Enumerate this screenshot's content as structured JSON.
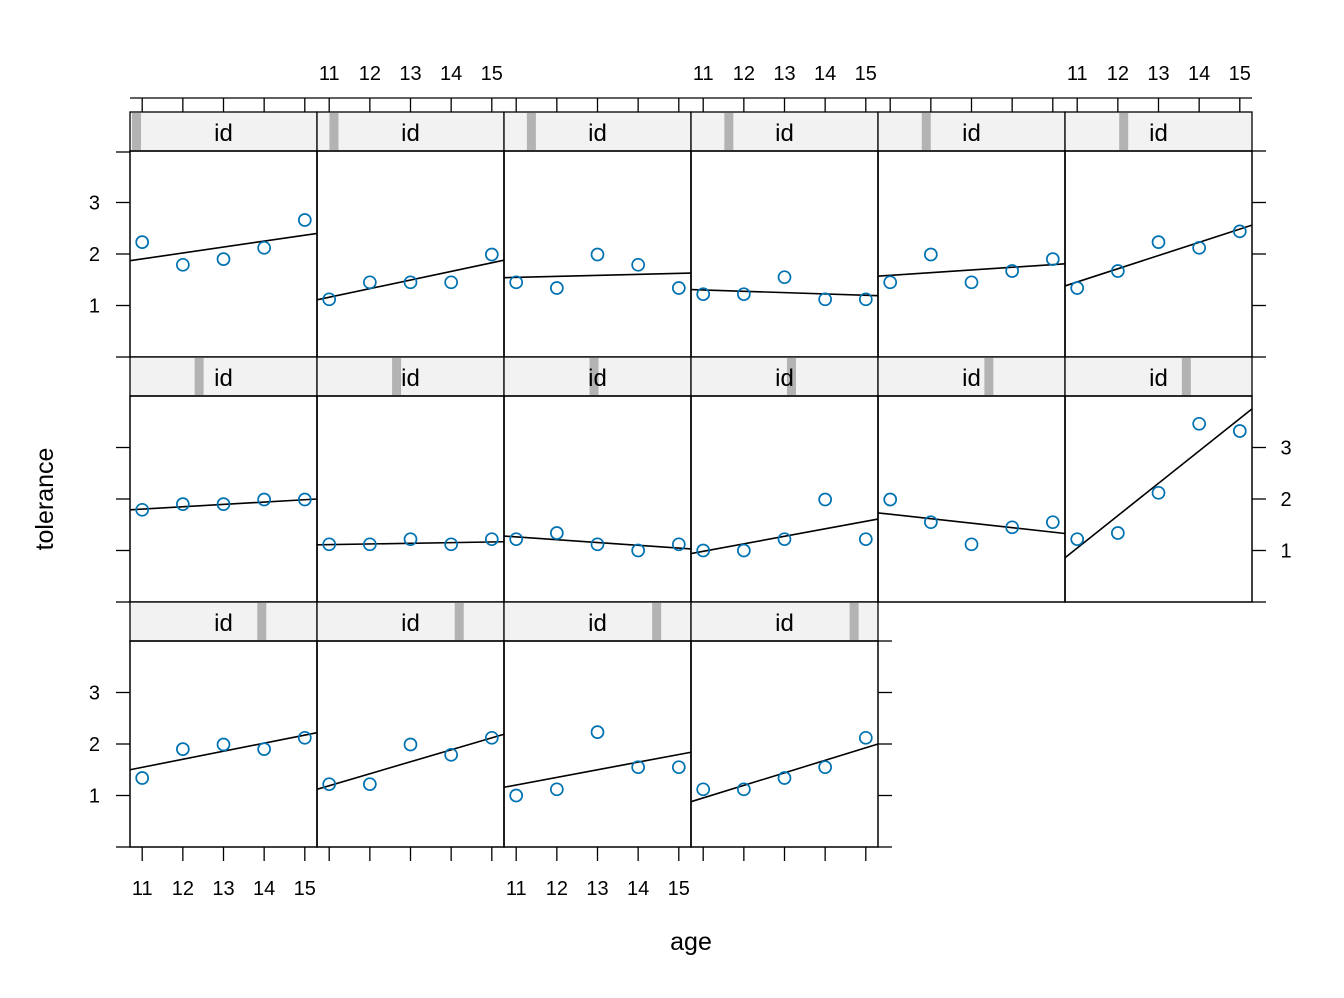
{
  "chart_data": {
    "type": "scatter",
    "xlabel": "age",
    "ylabel": "tolerance",
    "strip_label": "id",
    "x_ticks": [
      11,
      12,
      13,
      14,
      15
    ],
    "y_ticks": [
      1,
      2,
      3
    ],
    "xlim": [
      10.7,
      15.3
    ],
    "ylim": [
      0,
      4
    ],
    "layout": {
      "columns": 6,
      "rows": 3
    },
    "colors": {
      "points": "#0072b2",
      "fit": "#000000",
      "strip": "#f2f2f2",
      "strip_mark": "#b3b3b3"
    },
    "panels": [
      {
        "row": 1,
        "col": 1,
        "strip_level": 0.0,
        "points": [
          2.23,
          1.79,
          1.9,
          2.12,
          2.66
        ],
        "fit": [
          1.87,
          2.4
        ]
      },
      {
        "row": 1,
        "col": 2,
        "strip_level": 0.06,
        "points": [
          1.12,
          1.45,
          1.45,
          1.45,
          1.99
        ],
        "fit": [
          1.11,
          1.88
        ]
      },
      {
        "row": 1,
        "col": 3,
        "strip_level": 0.12,
        "points": [
          1.45,
          1.34,
          1.99,
          1.79,
          1.34
        ],
        "fit": [
          1.54,
          1.63
        ]
      },
      {
        "row": 1,
        "col": 4,
        "strip_level": 0.18,
        "points": [
          1.22,
          1.22,
          1.55,
          1.12,
          1.12
        ],
        "fit": [
          1.31,
          1.19
        ]
      },
      {
        "row": 1,
        "col": 5,
        "strip_level": 0.24,
        "points": [
          1.45,
          1.99,
          1.45,
          1.67,
          1.9
        ],
        "fit": [
          1.57,
          1.81
        ]
      },
      {
        "row": 1,
        "col": 6,
        "strip_level": 0.3,
        "points": [
          1.34,
          1.67,
          2.23,
          2.12,
          2.44
        ],
        "fit": [
          1.38,
          2.56
        ]
      },
      {
        "row": 2,
        "col": 1,
        "strip_level": 0.36,
        "points": [
          1.79,
          1.9,
          1.9,
          1.99,
          1.99
        ],
        "fit": [
          1.79,
          2.0
        ]
      },
      {
        "row": 2,
        "col": 2,
        "strip_level": 0.42,
        "points": [
          1.12,
          1.12,
          1.22,
          1.12,
          1.22
        ],
        "fit": [
          1.11,
          1.17
        ]
      },
      {
        "row": 2,
        "col": 3,
        "strip_level": 0.48,
        "points": [
          1.22,
          1.34,
          1.12,
          1.0,
          1.12
        ],
        "fit": [
          1.28,
          1.03
        ]
      },
      {
        "row": 2,
        "col": 4,
        "strip_level": 0.54,
        "points": [
          1.0,
          1.0,
          1.22,
          1.99,
          1.22
        ],
        "fit": [
          0.94,
          1.61
        ]
      },
      {
        "row": 2,
        "col": 5,
        "strip_level": 0.6,
        "points": [
          1.99,
          1.55,
          1.12,
          1.45,
          1.55
        ],
        "fit": [
          1.73,
          1.33
        ]
      },
      {
        "row": 2,
        "col": 6,
        "strip_level": 0.66,
        "points": [
          1.22,
          1.34,
          2.12,
          3.46,
          3.32
        ],
        "fit": [
          0.86,
          3.75
        ]
      },
      {
        "row": 3,
        "col": 1,
        "strip_level": 0.72,
        "points": [
          1.34,
          1.9,
          1.99,
          1.9,
          2.12
        ],
        "fit": [
          1.5,
          2.22
        ]
      },
      {
        "row": 3,
        "col": 2,
        "strip_level": 0.78,
        "points": [
          1.22,
          1.22,
          1.99,
          1.79,
          2.12
        ],
        "fit": [
          1.12,
          2.19
        ]
      },
      {
        "row": 3,
        "col": 3,
        "strip_level": 0.84,
        "points": [
          1.0,
          1.12,
          2.23,
          1.55,
          1.55
        ],
        "fit": [
          1.16,
          1.84
        ]
      },
      {
        "row": 3,
        "col": 4,
        "strip_level": 0.9,
        "points": [
          1.12,
          1.12,
          1.34,
          1.55,
          2.12
        ],
        "fit": [
          0.88,
          2.0
        ]
      }
    ]
  }
}
